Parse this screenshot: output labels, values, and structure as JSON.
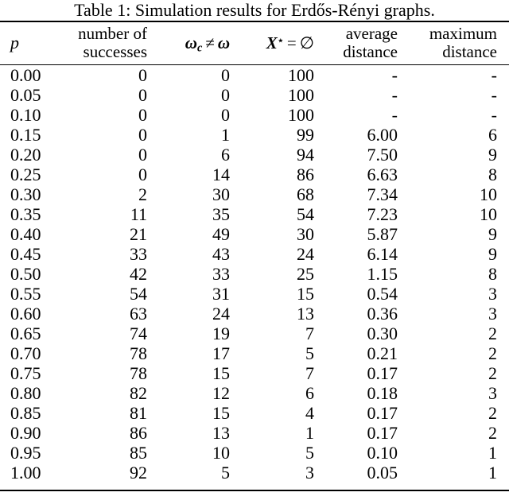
{
  "caption": "Table 1: Simulation results for Erdős-Rényi graphs.",
  "table": {
    "column_keys": [
      "p",
      "num-successes",
      "omega-neq",
      "x-star-empty",
      "avg-distance",
      "max-distance"
    ],
    "header": {
      "p": "p",
      "successes_line1": "number of",
      "successes_line2": "successes",
      "omega": {
        "lhs": "ω",
        "sub": "c",
        "op": "≠",
        "rhs": "ω"
      },
      "xstar": {
        "lhs": "X",
        "sup": "⋆",
        "op": "=",
        "rhs": "∅"
      },
      "avg_line1": "average",
      "avg_line2": "distance",
      "max_line1": "maximum",
      "max_line2": "distance"
    },
    "rows": [
      [
        "0.00",
        "0",
        "0",
        "100",
        "-",
        "-"
      ],
      [
        "0.05",
        "0",
        "0",
        "100",
        "-",
        "-"
      ],
      [
        "0.10",
        "0",
        "0",
        "100",
        "-",
        "-"
      ],
      [
        "0.15",
        "0",
        "1",
        "99",
        "6.00",
        "6"
      ],
      [
        "0.20",
        "0",
        "6",
        "94",
        "7.50",
        "9"
      ],
      [
        "0.25",
        "0",
        "14",
        "86",
        "6.63",
        "8"
      ],
      [
        "0.30",
        "2",
        "30",
        "68",
        "7.34",
        "10"
      ],
      [
        "0.35",
        "11",
        "35",
        "54",
        "7.23",
        "10"
      ],
      [
        "0.40",
        "21",
        "49",
        "30",
        "5.87",
        "9"
      ],
      [
        "0.45",
        "33",
        "43",
        "24",
        "6.14",
        "9"
      ],
      [
        "0.50",
        "42",
        "33",
        "25",
        "1.15",
        "8"
      ],
      [
        "0.55",
        "54",
        "31",
        "15",
        "0.54",
        "3"
      ],
      [
        "0.60",
        "63",
        "24",
        "13",
        "0.36",
        "3"
      ],
      [
        "0.65",
        "74",
        "19",
        "7",
        "0.30",
        "2"
      ],
      [
        "0.70",
        "78",
        "17",
        "5",
        "0.21",
        "2"
      ],
      [
        "0.75",
        "78",
        "15",
        "7",
        "0.17",
        "2"
      ],
      [
        "0.80",
        "82",
        "12",
        "6",
        "0.18",
        "3"
      ],
      [
        "0.85",
        "81",
        "15",
        "4",
        "0.17",
        "2"
      ],
      [
        "0.90",
        "86",
        "13",
        "1",
        "0.17",
        "2"
      ],
      [
        "0.95",
        "85",
        "10",
        "5",
        "0.10",
        "1"
      ],
      [
        "1.00",
        "92",
        "5",
        "3",
        "0.05",
        "1"
      ]
    ]
  }
}
